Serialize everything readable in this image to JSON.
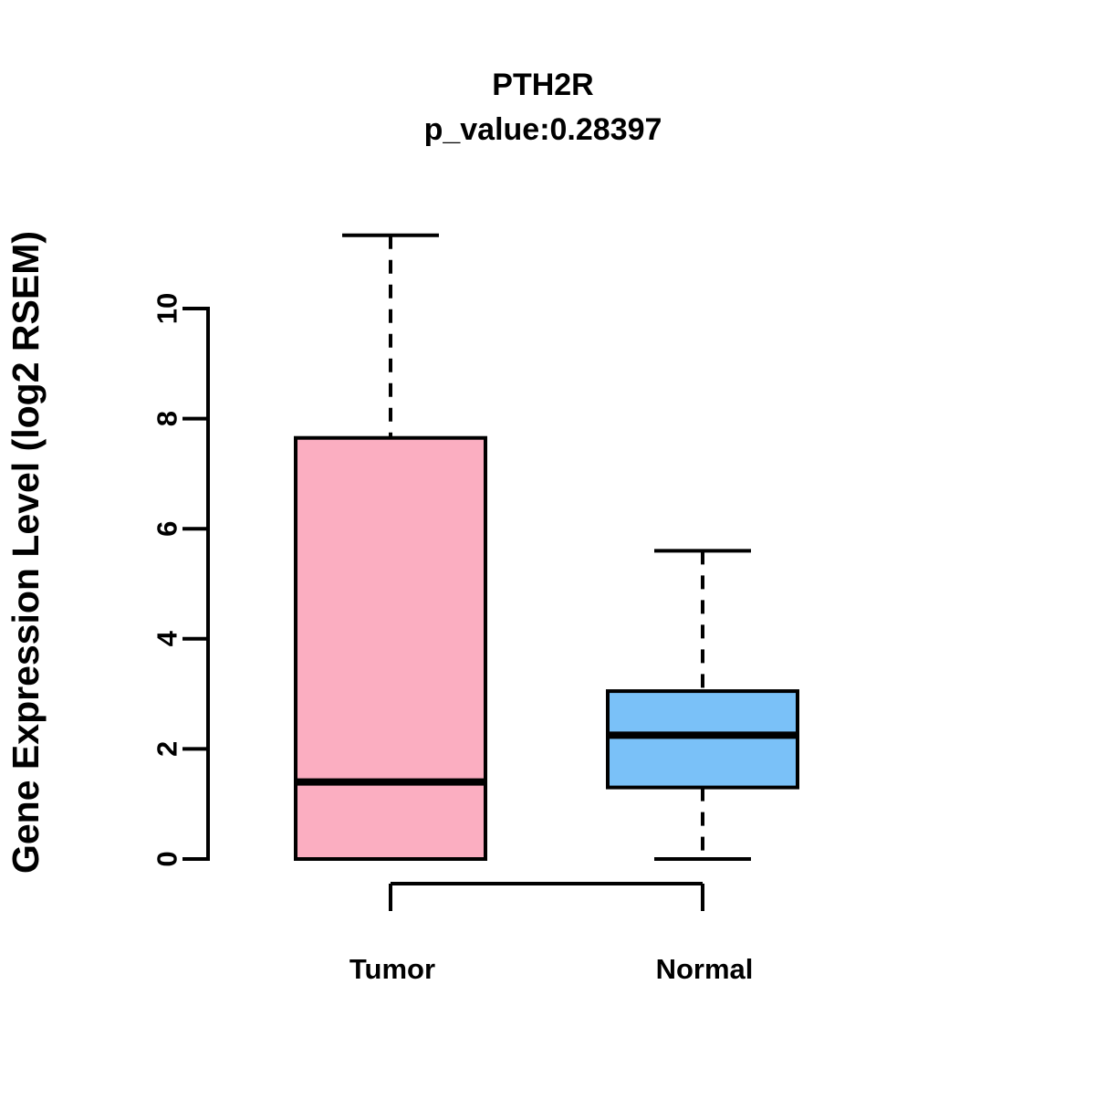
{
  "page": {
    "background_color": "#ffffff"
  },
  "chart_data": {
    "type": "box",
    "title": "PTH2R",
    "subtitle": "p_value:0.28397",
    "ylabel": "Gene Expression Level (log2 RSEM)",
    "xlabel": "",
    "yticks": [
      0,
      2,
      4,
      6,
      8,
      10
    ],
    "ylim": [
      0,
      11.4
    ],
    "grid": false,
    "legend": false,
    "axis_color": "#000000",
    "median_color": "#000000",
    "whisker_style": "dashed",
    "categories": [
      "Tumor",
      "Normal"
    ],
    "groups": [
      {
        "label": "Tumor",
        "fill_color": "#FBAEC1",
        "stats": {
          "whisker_low": 0,
          "q1": 0,
          "median": 1.4,
          "q3": 7.65,
          "whisker_high": 11.33
        }
      },
      {
        "label": "Normal",
        "fill_color": "#7AC1F8",
        "stats": {
          "whisker_low": 0,
          "q1": 1.3,
          "median": 2.25,
          "q3": 3.05,
          "whisker_high": 5.6
        }
      }
    ]
  }
}
